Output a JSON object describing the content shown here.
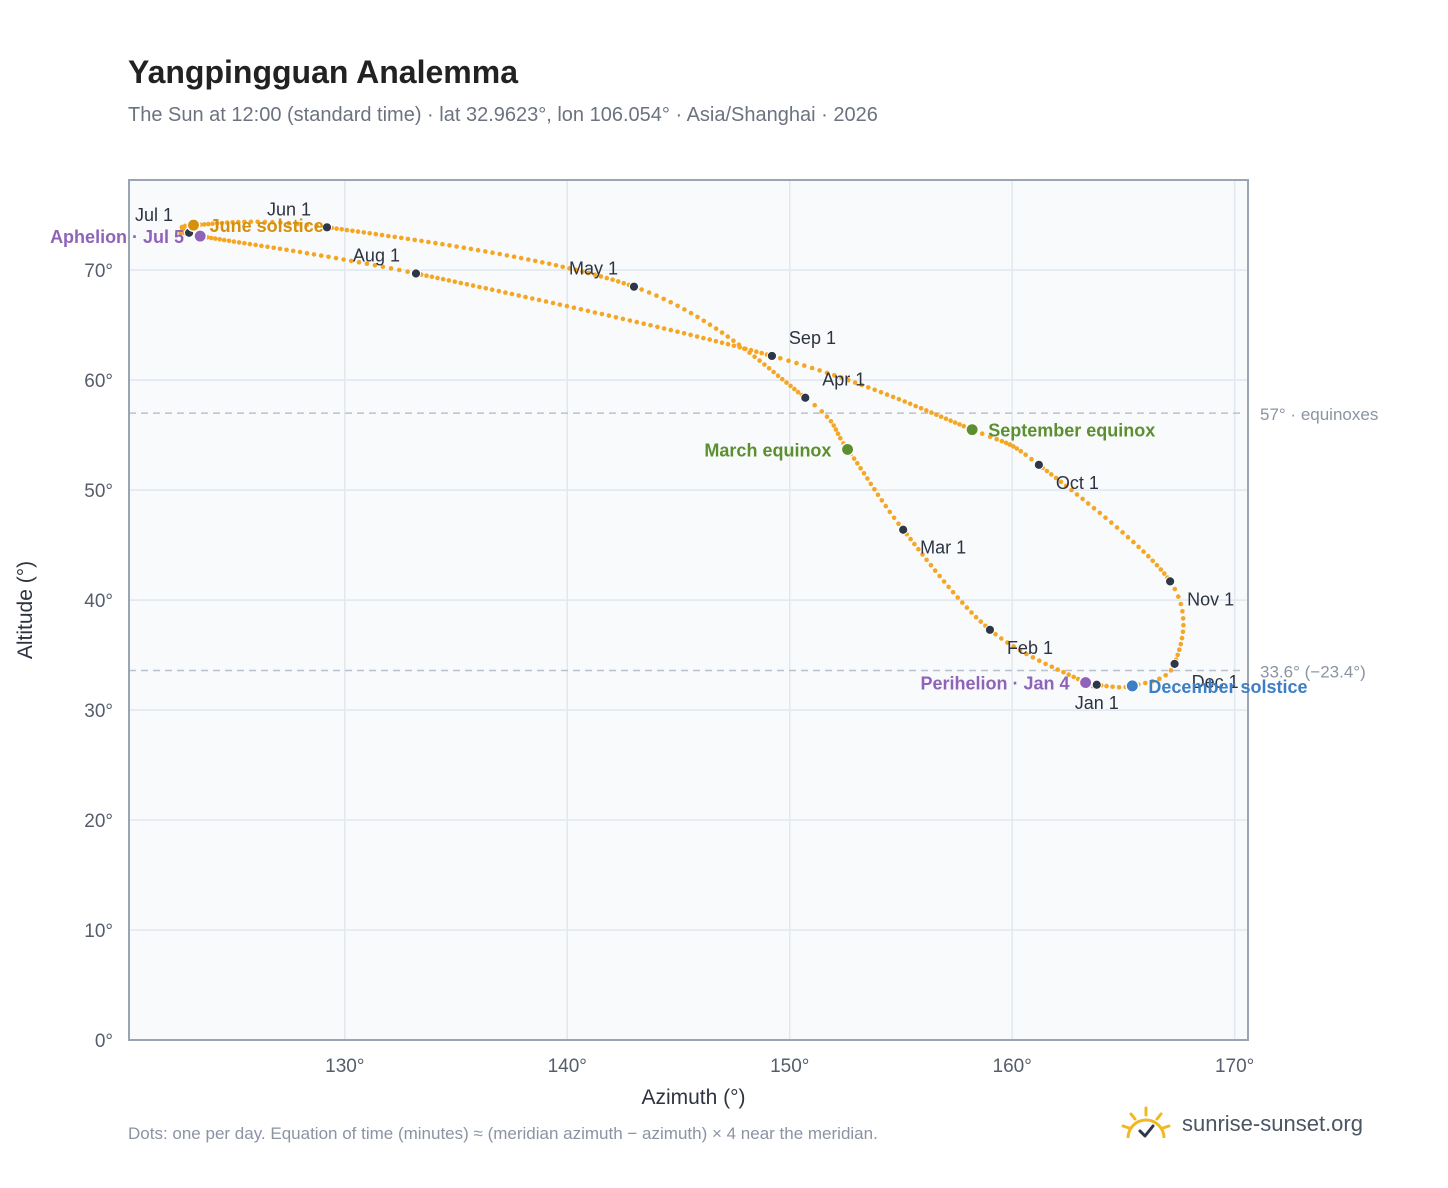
{
  "title": "Yangpingguan Analemma",
  "subtitle": "The Sun at 12:00 (standard time) · lat 32.9623°, lon 106.054° · Asia/Shanghai · 2026",
  "footnote": "Dots: one per day. Equation of time (minutes) ≈ (meridian azimuth − azimuth) × 4 near the meridian.",
  "brand": {
    "name": "sunrise-sunset.org",
    "icon": "sun-check-icon"
  },
  "colors": {
    "curve": "#f5a623",
    "month_marker": "#2d3748",
    "equinox": "#5b8f2f",
    "june_solstice": "#d4900e",
    "december_solstice": "#3d7ec4",
    "apsis": "#8e63b8",
    "grid": "#e2e8f0",
    "plot_bg": "#f8fafc",
    "frame": "#9aa5b4",
    "ref_line": "#b7c2d0"
  },
  "chart_data": {
    "type": "scatter",
    "xlabel": "Azimuth (°)",
    "ylabel": "Altitude (°)",
    "xlim": [
      120.3,
      170.6
    ],
    "ylim": [
      0,
      78.2
    ],
    "x_ticks": [
      {
        "value": 130,
        "label": "130°"
      },
      {
        "value": 140,
        "label": "140°"
      },
      {
        "value": 150,
        "label": "150°"
      },
      {
        "value": 160,
        "label": "160°"
      },
      {
        "value": 170,
        "label": "170°"
      }
    ],
    "y_ticks": [
      {
        "value": 0,
        "label": "0°"
      },
      {
        "value": 10,
        "label": "10°"
      },
      {
        "value": 20,
        "label": "20°"
      },
      {
        "value": 30,
        "label": "30°"
      },
      {
        "value": 40,
        "label": "40°"
      },
      {
        "value": 50,
        "label": "50°"
      },
      {
        "value": 60,
        "label": "60°"
      },
      {
        "value": 70,
        "label": "70°"
      }
    ],
    "grid": true,
    "reference_lines": [
      {
        "altitude": 57.0,
        "label": "57° · equinoxes"
      },
      {
        "altitude": 33.6,
        "label": "33.6° (−23.4°)"
      }
    ],
    "path_points": [
      {
        "date": "Jan 1",
        "azimuth": 163.8,
        "altitude": 32.3
      },
      {
        "date": "Jan 4",
        "azimuth": 163.3,
        "altitude": 32.5
      },
      {
        "date": "Feb 1",
        "azimuth": 159.0,
        "altitude": 37.3
      },
      {
        "date": "Mar 1",
        "azimuth": 155.1,
        "altitude": 46.4
      },
      {
        "date": "Mar 20",
        "azimuth": 152.6,
        "altitude": 53.7
      },
      {
        "date": "Apr 1",
        "azimuth": 150.7,
        "altitude": 58.4
      },
      {
        "date": "May 1",
        "azimuth": 143.0,
        "altitude": 68.5
      },
      {
        "date": "Jun 1",
        "azimuth": 129.2,
        "altitude": 73.9
      },
      {
        "date": "Jun 21",
        "azimuth": 123.2,
        "altitude": 74.1
      },
      {
        "date": "Jul 1",
        "azimuth": 123.0,
        "altitude": 73.4
      },
      {
        "date": "Jul 5",
        "azimuth": 123.5,
        "altitude": 73.1
      },
      {
        "date": "Aug 1",
        "azimuth": 133.2,
        "altitude": 69.7
      },
      {
        "date": "Sep 1",
        "azimuth": 149.2,
        "altitude": 62.2
      },
      {
        "date": "Sep 23",
        "azimuth": 158.2,
        "altitude": 55.5
      },
      {
        "date": "Oct 1",
        "azimuth": 161.2,
        "altitude": 52.3
      },
      {
        "date": "Nov 1",
        "azimuth": 167.1,
        "altitude": 41.7
      },
      {
        "date": "Dec 1",
        "azimuth": 167.3,
        "altitude": 34.2
      },
      {
        "date": "Dec 21",
        "azimuth": 165.4,
        "altitude": 32.2
      },
      {
        "date": "Jan 1",
        "azimuth": 163.8,
        "altitude": 32.3
      }
    ],
    "month_markers": [
      {
        "label": "Jan 1",
        "azimuth": 163.8,
        "altitude": 32.3,
        "anchor": "below"
      },
      {
        "label": "Feb 1",
        "azimuth": 159.0,
        "altitude": 37.3,
        "anchor": "right-below"
      },
      {
        "label": "Mar 1",
        "azimuth": 155.1,
        "altitude": 46.4,
        "anchor": "right-below"
      },
      {
        "label": "Apr 1",
        "azimuth": 150.7,
        "altitude": 58.4,
        "anchor": "right-above"
      },
      {
        "label": "May 1",
        "azimuth": 143.0,
        "altitude": 68.5,
        "anchor": "left-above"
      },
      {
        "label": "Jun 1",
        "azimuth": 129.2,
        "altitude": 73.9,
        "anchor": "left-above"
      },
      {
        "label": "Jul 1",
        "azimuth": 123.0,
        "altitude": 73.4,
        "anchor": "left-above"
      },
      {
        "label": "Aug 1",
        "azimuth": 133.2,
        "altitude": 69.7,
        "anchor": "left-above"
      },
      {
        "label": "Sep 1",
        "azimuth": 149.2,
        "altitude": 62.2,
        "anchor": "right-above"
      },
      {
        "label": "Oct 1",
        "azimuth": 161.2,
        "altitude": 52.3,
        "anchor": "right-below"
      },
      {
        "label": "Nov 1",
        "azimuth": 167.1,
        "altitude": 41.7,
        "anchor": "right-below"
      },
      {
        "label": "Dec 1",
        "azimuth": 167.3,
        "altitude": 34.2,
        "anchor": "right-below"
      }
    ],
    "events": [
      {
        "label": "March equinox",
        "azimuth": 152.6,
        "altitude": 53.7,
        "kind": "equinox",
        "anchor": "left"
      },
      {
        "label": "September equinox",
        "azimuth": 158.2,
        "altitude": 55.5,
        "kind": "equinox",
        "anchor": "right"
      },
      {
        "label": "June solstice",
        "azimuth": 123.2,
        "altitude": 74.1,
        "kind": "june_solstice",
        "anchor": "right"
      },
      {
        "label": "December solstice",
        "azimuth": 165.4,
        "altitude": 32.2,
        "kind": "december_solstice",
        "anchor": "right"
      },
      {
        "label": "Aphelion · Jul 5",
        "azimuth": 123.5,
        "altitude": 73.1,
        "kind": "apsis",
        "anchor": "left"
      },
      {
        "label": "Perihelion · Jan 4",
        "azimuth": 163.3,
        "altitude": 32.5,
        "kind": "apsis",
        "anchor": "left"
      }
    ]
  }
}
